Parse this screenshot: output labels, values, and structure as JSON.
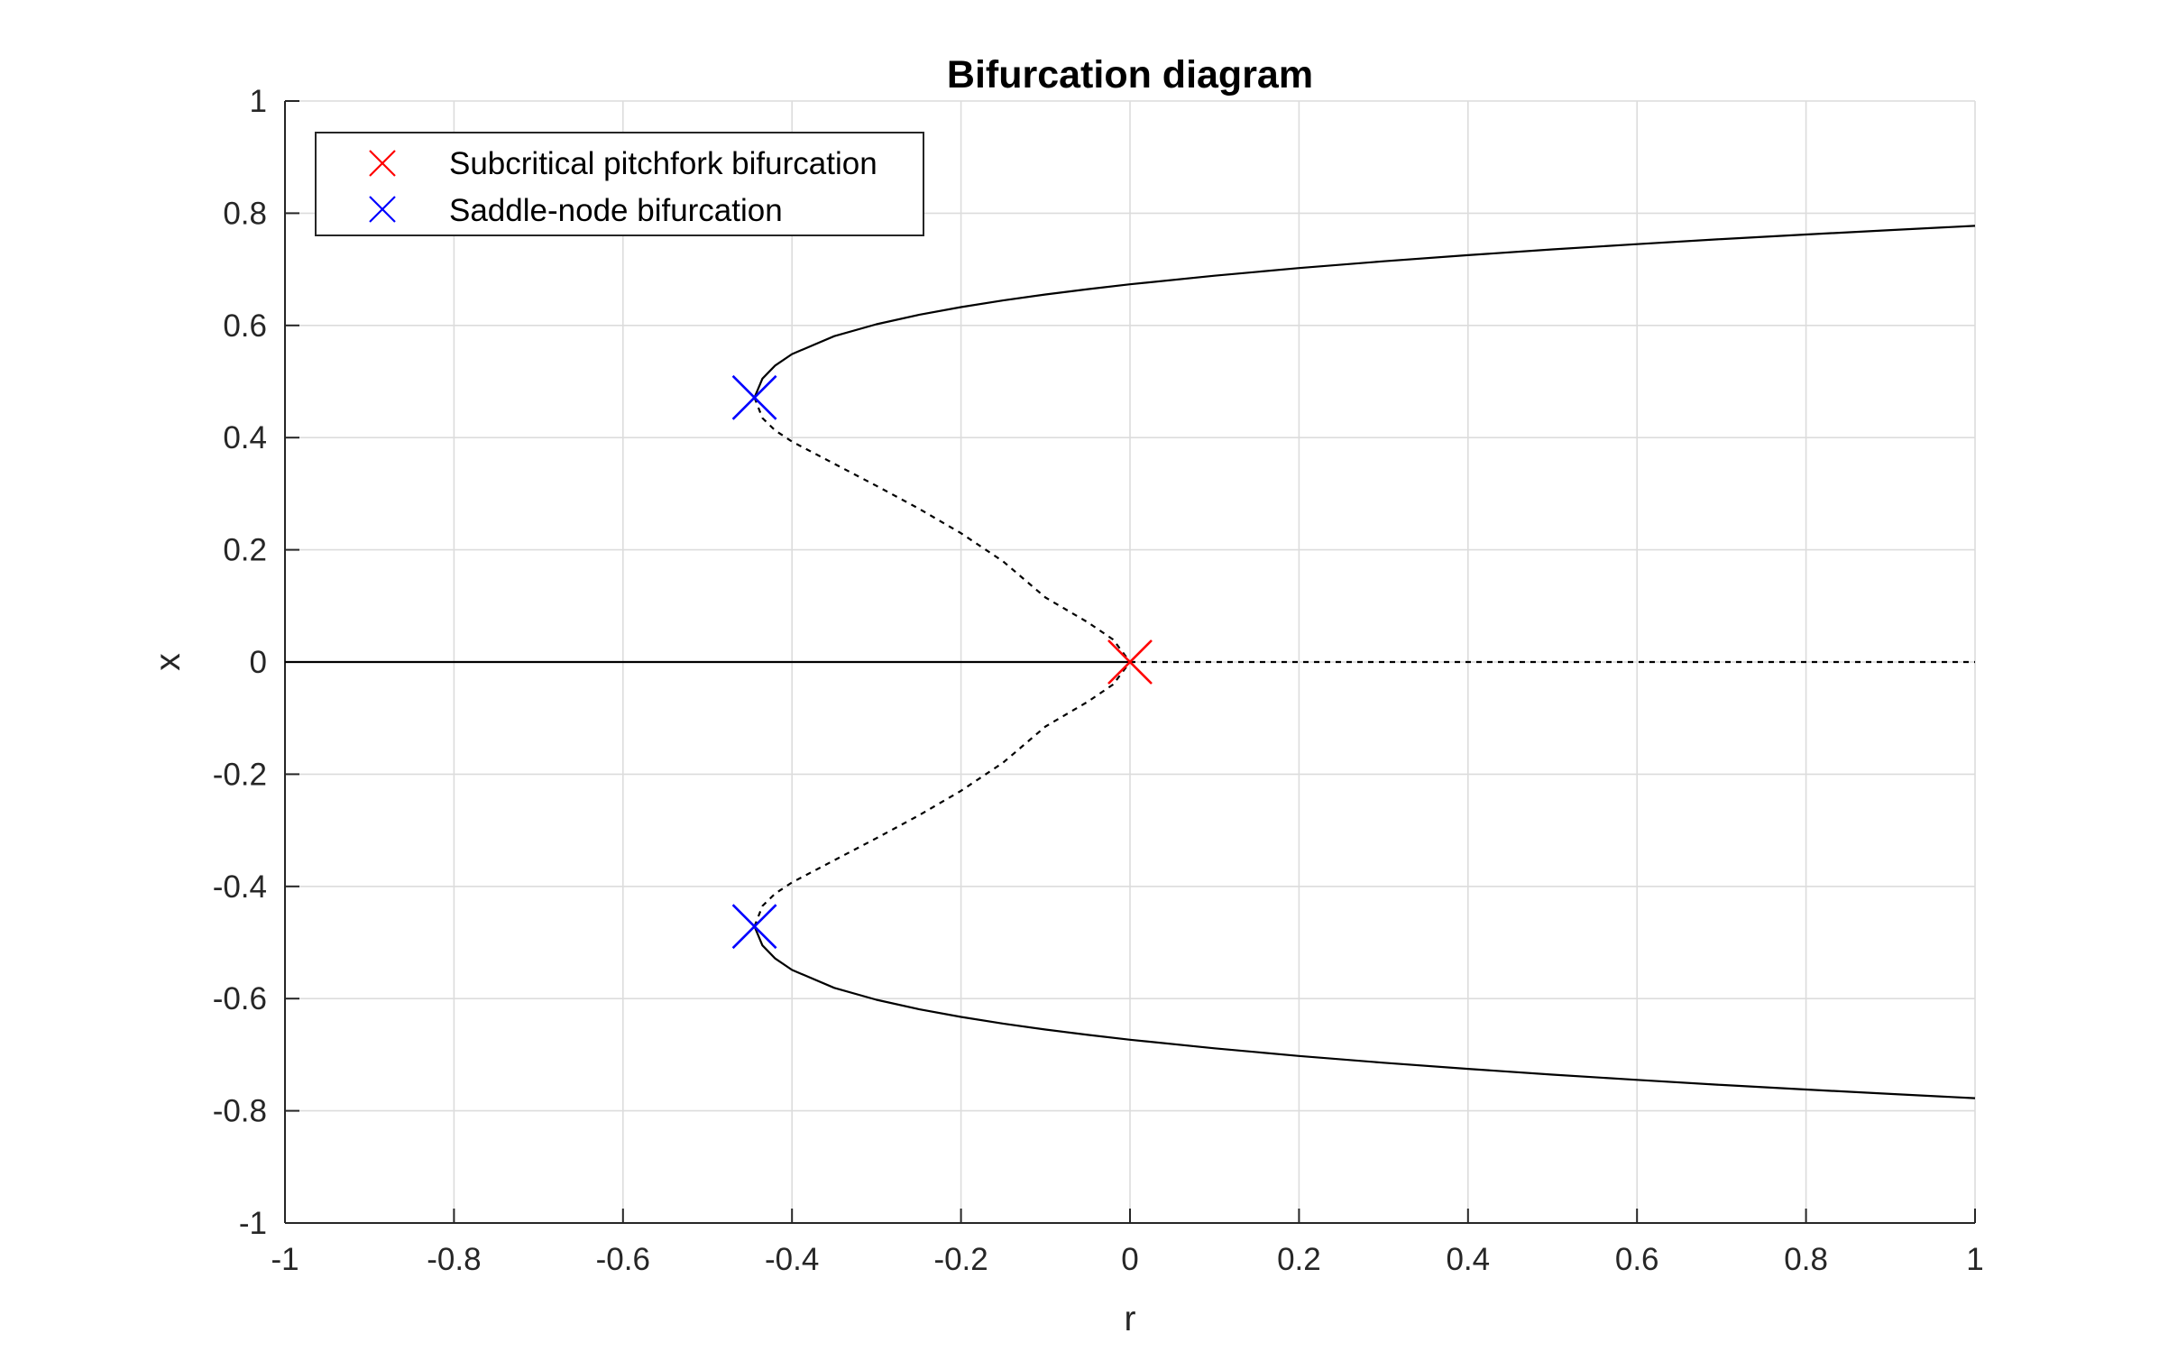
{
  "chart_data": {
    "type": "line",
    "title": "Bifurcation diagram",
    "xlabel": "r",
    "ylabel": "x",
    "xlim": [
      -1,
      1
    ],
    "ylim": [
      -1,
      1
    ],
    "grid": true,
    "legend_position": "top-left",
    "x_ticks": [
      "-1",
      "-0.8",
      "-0.6",
      "-0.4",
      "-0.2",
      "0",
      "0.2",
      "0.4",
      "0.6",
      "0.8",
      "1"
    ],
    "y_ticks": [
      "1",
      "0.8",
      "0.6",
      "0.4",
      "0.2",
      "0",
      "-0.2",
      "-0.4",
      "-0.6",
      "-0.8",
      "-1"
    ],
    "series": [
      {
        "style": "solid",
        "color": "#000000",
        "x": [
          -1,
          0
        ],
        "y": [
          0,
          0
        ]
      },
      {
        "style": "dashed",
        "color": "#000000",
        "x": [
          0,
          1
        ],
        "y": [
          0,
          0
        ]
      },
      {
        "style": "solid",
        "color": "#000000",
        "x": [
          -0.4444,
          -0.435,
          -0.42,
          -0.4,
          -0.35,
          -0.3,
          -0.25,
          -0.2,
          -0.15,
          -0.1,
          -0.05,
          0,
          0.1,
          0.2,
          0.3,
          0.4,
          0.5,
          0.6,
          0.7,
          0.8,
          0.9,
          1.0
        ],
        "y": [
          0.4714,
          0.5052,
          0.5284,
          0.5489,
          0.5808,
          0.6021,
          0.6188,
          0.6326,
          0.6446,
          0.6552,
          0.6646,
          0.6733,
          0.6886,
          0.7022,
          0.7143,
          0.7253,
          0.7355,
          0.7449,
          0.7538,
          0.7621,
          0.77,
          0.7775
        ]
      },
      {
        "style": "solid",
        "color": "#000000",
        "x": [
          -0.4444,
          -0.435,
          -0.42,
          -0.4,
          -0.35,
          -0.3,
          -0.25,
          -0.2,
          -0.15,
          -0.1,
          -0.05,
          0,
          0.1,
          0.2,
          0.3,
          0.4,
          0.5,
          0.6,
          0.7,
          0.8,
          0.9,
          1.0
        ],
        "y": [
          -0.4714,
          -0.5052,
          -0.5284,
          -0.5489,
          -0.5808,
          -0.6021,
          -0.6188,
          -0.6326,
          -0.6446,
          -0.6552,
          -0.6646,
          -0.6733,
          -0.6886,
          -0.7022,
          -0.7143,
          -0.7253,
          -0.7355,
          -0.7449,
          -0.7538,
          -0.7621,
          -0.77,
          -0.7775
        ]
      },
      {
        "style": "dashed",
        "color": "#000000",
        "x": [
          -0.4444,
          -0.435,
          -0.42,
          -0.4,
          -0.35,
          -0.3,
          -0.25,
          -0.2,
          -0.15,
          -0.1,
          -0.05,
          -0.02,
          0
        ],
        "y": [
          0.4714,
          0.4349,
          0.4128,
          0.3929,
          0.3534,
          0.314,
          0.2734,
          0.2296,
          0.1792,
          0.115,
          0.0707,
          0.04,
          0
        ]
      },
      {
        "style": "dashed",
        "color": "#000000",
        "x": [
          -0.4444,
          -0.435,
          -0.42,
          -0.4,
          -0.35,
          -0.3,
          -0.25,
          -0.2,
          -0.15,
          -0.1,
          -0.05,
          -0.02,
          0
        ],
        "y": [
          -0.4714,
          -0.4349,
          -0.4128,
          -0.3929,
          -0.3534,
          -0.314,
          -0.2734,
          -0.2296,
          -0.1792,
          -0.115,
          -0.0707,
          -0.04,
          0
        ]
      }
    ],
    "markers": [
      {
        "name": "Subcritical pitchfork bifurcation",
        "color": "#ff0000",
        "points": [
          [
            0,
            0
          ]
        ]
      },
      {
        "name": "Saddle-node bifurcation",
        "color": "#0000ff",
        "points": [
          [
            -0.4444,
            0.4714
          ],
          [
            -0.4444,
            -0.4714
          ]
        ]
      }
    ],
    "legend": [
      {
        "label": "Subcritical pitchfork bifurcation",
        "color": "#ff0000"
      },
      {
        "label": "Saddle-node bifurcation",
        "color": "#0000ff"
      }
    ]
  }
}
